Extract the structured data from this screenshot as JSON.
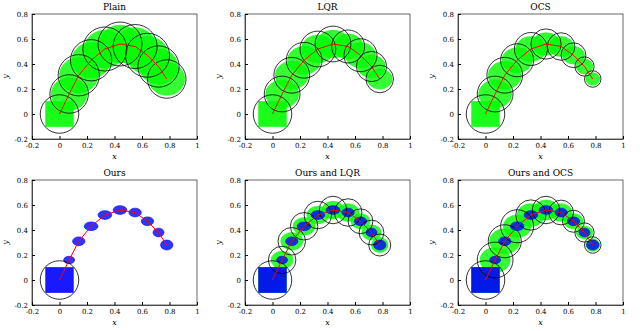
{
  "chart_data": [
    {
      "type": "scatter",
      "title": "Plain",
      "xlabel": "x",
      "ylabel": "y",
      "xlim": [
        -0.2,
        1
      ],
      "ylim": [
        -0.2,
        0.8
      ],
      "xticks": [
        -0.2,
        0,
        0.2,
        0.4,
        0.6,
        0.8,
        1
      ],
      "yticks": [
        -0.2,
        0,
        0.2,
        0.4,
        0.6,
        0.8
      ],
      "series": [
        {
          "color": "#00ff00",
          "box_x": [
            -0.1,
            0.1
          ],
          "box_y": [
            -0.1,
            0.1
          ],
          "x": [
            0.07,
            0.14,
            0.23,
            0.33,
            0.44,
            0.55,
            0.64,
            0.72,
            0.78
          ],
          "y": [
            0.16,
            0.31,
            0.43,
            0.52,
            0.56,
            0.54,
            0.47,
            0.38,
            0.28
          ],
          "rx": [
            0.13,
            0.14,
            0.14,
            0.15,
            0.15,
            0.15,
            0.15,
            0.14,
            0.13
          ],
          "ry": [
            0.13,
            0.14,
            0.14,
            0.15,
            0.15,
            0.15,
            0.15,
            0.14,
            0.13
          ]
        }
      ],
      "trajectory": {
        "color": "#ff0000",
        "x": [
          0,
          0.07,
          0.14,
          0.23,
          0.33,
          0.44,
          0.55,
          0.64,
          0.72,
          0.78
        ],
        "y": [
          0,
          0.16,
          0.31,
          0.43,
          0.52,
          0.56,
          0.54,
          0.47,
          0.38,
          0.28
        ]
      },
      "circles": {
        "x": [
          0,
          0.07,
          0.14,
          0.23,
          0.33,
          0.44,
          0.55,
          0.64,
          0.72,
          0.78
        ],
        "y": [
          0,
          0.16,
          0.31,
          0.43,
          0.52,
          0.56,
          0.54,
          0.47,
          0.38,
          0.28
        ],
        "r": [
          0.14,
          0.14,
          0.15,
          0.15,
          0.16,
          0.16,
          0.16,
          0.16,
          0.15,
          0.14
        ]
      }
    },
    {
      "type": "scatter",
      "title": "LQR",
      "xlabel": "x",
      "ylabel": "y",
      "xlim": [
        -0.2,
        1
      ],
      "ylim": [
        -0.2,
        0.8
      ],
      "xticks": [
        -0.2,
        0,
        0.2,
        0.4,
        0.6,
        0.8,
        1
      ],
      "yticks": [
        -0.2,
        0,
        0.2,
        0.4,
        0.6,
        0.8
      ],
      "series": [
        {
          "color": "#00ff00",
          "box_x": [
            -0.1,
            0.1
          ],
          "box_y": [
            -0.1,
            0.1
          ],
          "x": [
            0.07,
            0.14,
            0.23,
            0.33,
            0.44,
            0.55,
            0.64,
            0.72,
            0.78
          ],
          "y": [
            0.16,
            0.31,
            0.43,
            0.52,
            0.56,
            0.54,
            0.47,
            0.38,
            0.28
          ],
          "rx": [
            0.12,
            0.12,
            0.12,
            0.12,
            0.12,
            0.11,
            0.11,
            0.1,
            0.09
          ],
          "ry": [
            0.11,
            0.11,
            0.11,
            0.11,
            0.11,
            0.1,
            0.1,
            0.09,
            0.08
          ]
        }
      ],
      "trajectory": {
        "color": "#ff0000",
        "x": [
          0,
          0.07,
          0.14,
          0.23,
          0.33,
          0.44,
          0.55,
          0.64,
          0.72,
          0.78
        ],
        "y": [
          0,
          0.16,
          0.31,
          0.43,
          0.52,
          0.56,
          0.54,
          0.47,
          0.38,
          0.28
        ]
      },
      "circles": {
        "x": [
          0,
          0.07,
          0.14,
          0.23,
          0.33,
          0.44,
          0.55,
          0.64,
          0.72,
          0.78
        ],
        "y": [
          0,
          0.16,
          0.31,
          0.43,
          0.52,
          0.56,
          0.54,
          0.47,
          0.38,
          0.28
        ],
        "r": [
          0.14,
          0.13,
          0.13,
          0.13,
          0.13,
          0.13,
          0.12,
          0.12,
          0.11,
          0.1
        ]
      }
    },
    {
      "type": "scatter",
      "title": "OCS",
      "xlabel": "x",
      "ylabel": "y",
      "xlim": [
        -0.2,
        1
      ],
      "ylim": [
        -0.2,
        0.8
      ],
      "xticks": [
        -0.2,
        0,
        0.2,
        0.4,
        0.6,
        0.8,
        1
      ],
      "yticks": [
        -0.2,
        0,
        0.2,
        0.4,
        0.6,
        0.8
      ],
      "series": [
        {
          "color": "#00ff00",
          "box_x": [
            -0.1,
            0.1
          ],
          "box_y": [
            -0.1,
            0.1
          ],
          "x": [
            0.07,
            0.14,
            0.23,
            0.33,
            0.44,
            0.55,
            0.64,
            0.72,
            0.78
          ],
          "y": [
            0.16,
            0.31,
            0.43,
            0.52,
            0.56,
            0.54,
            0.47,
            0.38,
            0.28
          ],
          "rx": [
            0.12,
            0.12,
            0.11,
            0.11,
            0.1,
            0.09,
            0.08,
            0.06,
            0.05
          ],
          "ry": [
            0.11,
            0.11,
            0.1,
            0.1,
            0.09,
            0.08,
            0.07,
            0.06,
            0.05
          ]
        }
      ],
      "trajectory": {
        "color": "#ff0000",
        "x": [
          0,
          0.07,
          0.14,
          0.23,
          0.33,
          0.44,
          0.55,
          0.64,
          0.72,
          0.78
        ],
        "y": [
          0,
          0.16,
          0.31,
          0.43,
          0.52,
          0.56,
          0.54,
          0.47,
          0.38,
          0.28
        ]
      },
      "circles": {
        "x": [
          0,
          0.07,
          0.14,
          0.23,
          0.33,
          0.44,
          0.55,
          0.64,
          0.72,
          0.78
        ],
        "y": [
          0,
          0.16,
          0.31,
          0.43,
          0.52,
          0.56,
          0.54,
          0.47,
          0.38,
          0.28
        ],
        "r": [
          0.14,
          0.13,
          0.13,
          0.12,
          0.12,
          0.11,
          0.1,
          0.09,
          0.07,
          0.06
        ]
      }
    },
    {
      "type": "scatter",
      "title": "Ours",
      "xlabel": "x",
      "ylabel": "y",
      "xlim": [
        -0.2,
        1
      ],
      "ylim": [
        -0.2,
        0.8
      ],
      "xticks": [
        -0.2,
        0,
        0.2,
        0.4,
        0.6,
        0.8,
        1
      ],
      "yticks": [
        -0.2,
        0,
        0.2,
        0.4,
        0.6,
        0.8
      ],
      "series": [
        {
          "color": "#0000ff",
          "box_x": [
            -0.1,
            0.1
          ],
          "box_y": [
            -0.1,
            0.1
          ],
          "x": [
            0.07,
            0.14,
            0.23,
            0.33,
            0.44,
            0.55,
            0.64,
            0.72,
            0.78
          ],
          "y": [
            0.16,
            0.31,
            0.43,
            0.52,
            0.56,
            0.54,
            0.47,
            0.38,
            0.28
          ],
          "rx": [
            0.04,
            0.045,
            0.05,
            0.05,
            0.05,
            0.045,
            0.045,
            0.04,
            0.045
          ],
          "ry": [
            0.03,
            0.035,
            0.035,
            0.035,
            0.035,
            0.035,
            0.035,
            0.035,
            0.04
          ]
        }
      ],
      "trajectory": {
        "color": "#ff0000",
        "x": [
          0,
          0.07,
          0.14,
          0.23,
          0.33,
          0.44,
          0.55,
          0.64,
          0.72,
          0.78
        ],
        "y": [
          0,
          0.16,
          0.31,
          0.43,
          0.52,
          0.56,
          0.54,
          0.47,
          0.38,
          0.28
        ]
      },
      "circles": {
        "x": [
          0
        ],
        "y": [
          0
        ],
        "r": [
          0.14
        ]
      }
    },
    {
      "type": "scatter",
      "title": "Ours and LQR",
      "xlabel": "x",
      "ylabel": "y",
      "xlim": [
        -0.2,
        1
      ],
      "ylim": [
        -0.2,
        0.8
      ],
      "xticks": [
        -0.2,
        0,
        0.2,
        0.4,
        0.6,
        0.8,
        1
      ],
      "yticks": [
        -0.2,
        0,
        0.2,
        0.4,
        0.6,
        0.8
      ],
      "series": [
        {
          "color": "#00ff00",
          "box_x": [
            -0.1,
            0.1
          ],
          "box_y": [
            -0.1,
            0.1
          ],
          "x": [
            0.07,
            0.14,
            0.23,
            0.33,
            0.44,
            0.55,
            0.64,
            0.72,
            0.78
          ],
          "y": [
            0.16,
            0.31,
            0.43,
            0.52,
            0.56,
            0.54,
            0.47,
            0.38,
            0.28
          ],
          "rx": [
            0.08,
            0.08,
            0.08,
            0.08,
            0.08,
            0.08,
            0.07,
            0.07,
            0.06
          ],
          "ry": [
            0.07,
            0.07,
            0.07,
            0.07,
            0.07,
            0.07,
            0.06,
            0.06,
            0.06
          ]
        },
        {
          "color": "#0000ff",
          "box_x": [
            -0.1,
            0.1
          ],
          "box_y": [
            -0.1,
            0.1
          ],
          "x": [
            0.07,
            0.14,
            0.23,
            0.33,
            0.44,
            0.55,
            0.64,
            0.72,
            0.78
          ],
          "y": [
            0.16,
            0.31,
            0.43,
            0.52,
            0.56,
            0.54,
            0.47,
            0.38,
            0.28
          ],
          "rx": [
            0.04,
            0.045,
            0.05,
            0.05,
            0.05,
            0.045,
            0.045,
            0.04,
            0.045
          ],
          "ry": [
            0.03,
            0.035,
            0.035,
            0.035,
            0.035,
            0.035,
            0.035,
            0.035,
            0.04
          ]
        }
      ],
      "trajectory": {
        "color": "#ff0000",
        "x": [
          0,
          0.07,
          0.14,
          0.23,
          0.33,
          0.44,
          0.55,
          0.64,
          0.72,
          0.78
        ],
        "y": [
          0,
          0.16,
          0.31,
          0.43,
          0.52,
          0.56,
          0.54,
          0.47,
          0.38,
          0.28
        ]
      },
      "circles": {
        "x": [
          0,
          0.07,
          0.14,
          0.23,
          0.33,
          0.44,
          0.55,
          0.64,
          0.72,
          0.78
        ],
        "y": [
          0,
          0.16,
          0.31,
          0.43,
          0.52,
          0.56,
          0.54,
          0.47,
          0.38,
          0.28
        ],
        "r": [
          0.14,
          0.1,
          0.1,
          0.1,
          0.1,
          0.1,
          0.1,
          0.09,
          0.09,
          0.08
        ]
      }
    },
    {
      "type": "scatter",
      "title": "Ours and OCS",
      "xlabel": "x",
      "ylabel": "y",
      "xlim": [
        -0.2,
        1
      ],
      "ylim": [
        -0.2,
        0.8
      ],
      "xticks": [
        -0.2,
        0,
        0.2,
        0.4,
        0.6,
        0.8,
        1
      ],
      "yticks": [
        -0.2,
        0,
        0.2,
        0.4,
        0.6,
        0.8
      ],
      "series": [
        {
          "color": "#00ff00",
          "box_x": [
            -0.1,
            0.1
          ],
          "box_y": [
            -0.1,
            0.1
          ],
          "x": [
            0.07,
            0.14,
            0.23,
            0.33,
            0.44,
            0.55,
            0.64,
            0.72,
            0.78
          ],
          "y": [
            0.16,
            0.31,
            0.43,
            0.52,
            0.56,
            0.54,
            0.47,
            0.38,
            0.28
          ],
          "rx": [
            0.11,
            0.11,
            0.1,
            0.1,
            0.09,
            0.08,
            0.07,
            0.06,
            0.05
          ],
          "ry": [
            0.1,
            0.1,
            0.09,
            0.09,
            0.08,
            0.07,
            0.06,
            0.05,
            0.05
          ]
        },
        {
          "color": "#0000ff",
          "box_x": [
            -0.1,
            0.1
          ],
          "box_y": [
            -0.1,
            0.1
          ],
          "x": [
            0.07,
            0.14,
            0.23,
            0.33,
            0.44,
            0.55,
            0.64,
            0.72,
            0.78
          ],
          "y": [
            0.16,
            0.31,
            0.43,
            0.52,
            0.56,
            0.54,
            0.47,
            0.38,
            0.28
          ],
          "rx": [
            0.04,
            0.045,
            0.05,
            0.05,
            0.05,
            0.045,
            0.045,
            0.04,
            0.045
          ],
          "ry": [
            0.03,
            0.035,
            0.035,
            0.035,
            0.035,
            0.035,
            0.035,
            0.035,
            0.04
          ]
        }
      ],
      "trajectory": {
        "color": "#ff0000",
        "x": [
          0,
          0.07,
          0.14,
          0.23,
          0.33,
          0.44,
          0.55,
          0.64,
          0.72,
          0.78
        ],
        "y": [
          0,
          0.16,
          0.31,
          0.43,
          0.52,
          0.56,
          0.54,
          0.47,
          0.38,
          0.28
        ]
      },
      "circles": {
        "x": [
          0,
          0.07,
          0.14,
          0.23,
          0.33,
          0.44,
          0.55,
          0.64,
          0.72,
          0.78
        ],
        "y": [
          0,
          0.16,
          0.31,
          0.43,
          0.52,
          0.56,
          0.54,
          0.47,
          0.38,
          0.28
        ],
        "r": [
          0.14,
          0.13,
          0.12,
          0.12,
          0.11,
          0.1,
          0.09,
          0.08,
          0.07,
          0.06
        ]
      }
    }
  ]
}
